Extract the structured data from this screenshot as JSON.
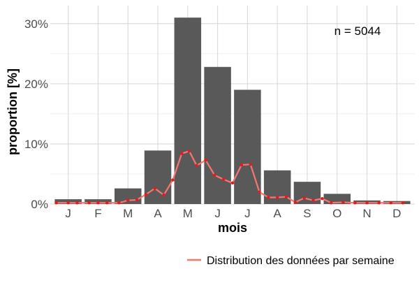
{
  "chart_data": {
    "type": "bar",
    "xlabel": "mois",
    "ylabel": "proportion [%]",
    "annotation": "n = 5044",
    "ylim": [
      0,
      33
    ],
    "y_ticks": [
      {
        "value": 0,
        "label": "0%"
      },
      {
        "value": 10,
        "label": "10%"
      },
      {
        "value": 20,
        "label": "20%"
      },
      {
        "value": 30,
        "label": "30%"
      }
    ],
    "categories": [
      "J",
      "F",
      "M",
      "A",
      "M",
      "J",
      "J",
      "A",
      "S",
      "O",
      "N",
      "D"
    ],
    "values": [
      0.8,
      0.8,
      2.6,
      8.9,
      31.0,
      22.8,
      19.0,
      5.6,
      3.7,
      1.7,
      0.6,
      0.5
    ],
    "bar_color": "#595959",
    "grid": true,
    "legend_position": "bottom-right",
    "weekly_series": {
      "name": "Distribution des données par semaine",
      "color": "#f8766d",
      "point_color": "#e41a1c",
      "x": [
        0.6,
        1.0,
        1.3,
        1.7,
        2.0,
        2.3,
        2.7,
        3.0,
        3.3,
        3.6,
        3.9,
        4.2,
        4.5,
        4.8,
        5.05,
        5.3,
        5.6,
        5.9,
        6.2,
        6.5,
        6.8,
        7.1,
        7.4,
        7.7,
        8.0,
        8.3,
        8.6,
        8.9,
        9.2,
        9.5,
        9.8,
        10.2,
        10.6,
        11.0,
        11.4,
        11.8,
        12.2
      ],
      "values": [
        0.2,
        0.2,
        0.2,
        0.2,
        0.2,
        0.2,
        0.2,
        0.6,
        0.7,
        1.6,
        2.6,
        1.5,
        4.0,
        8.4,
        8.8,
        6.4,
        7.3,
        4.8,
        4.1,
        3.5,
        6.5,
        6.6,
        2.0,
        1.1,
        1.1,
        1.2,
        0.3,
        1.0,
        0.6,
        0.9,
        0.2,
        0.3,
        0.2,
        0.2,
        0.2,
        0.2,
        0.2
      ]
    }
  }
}
